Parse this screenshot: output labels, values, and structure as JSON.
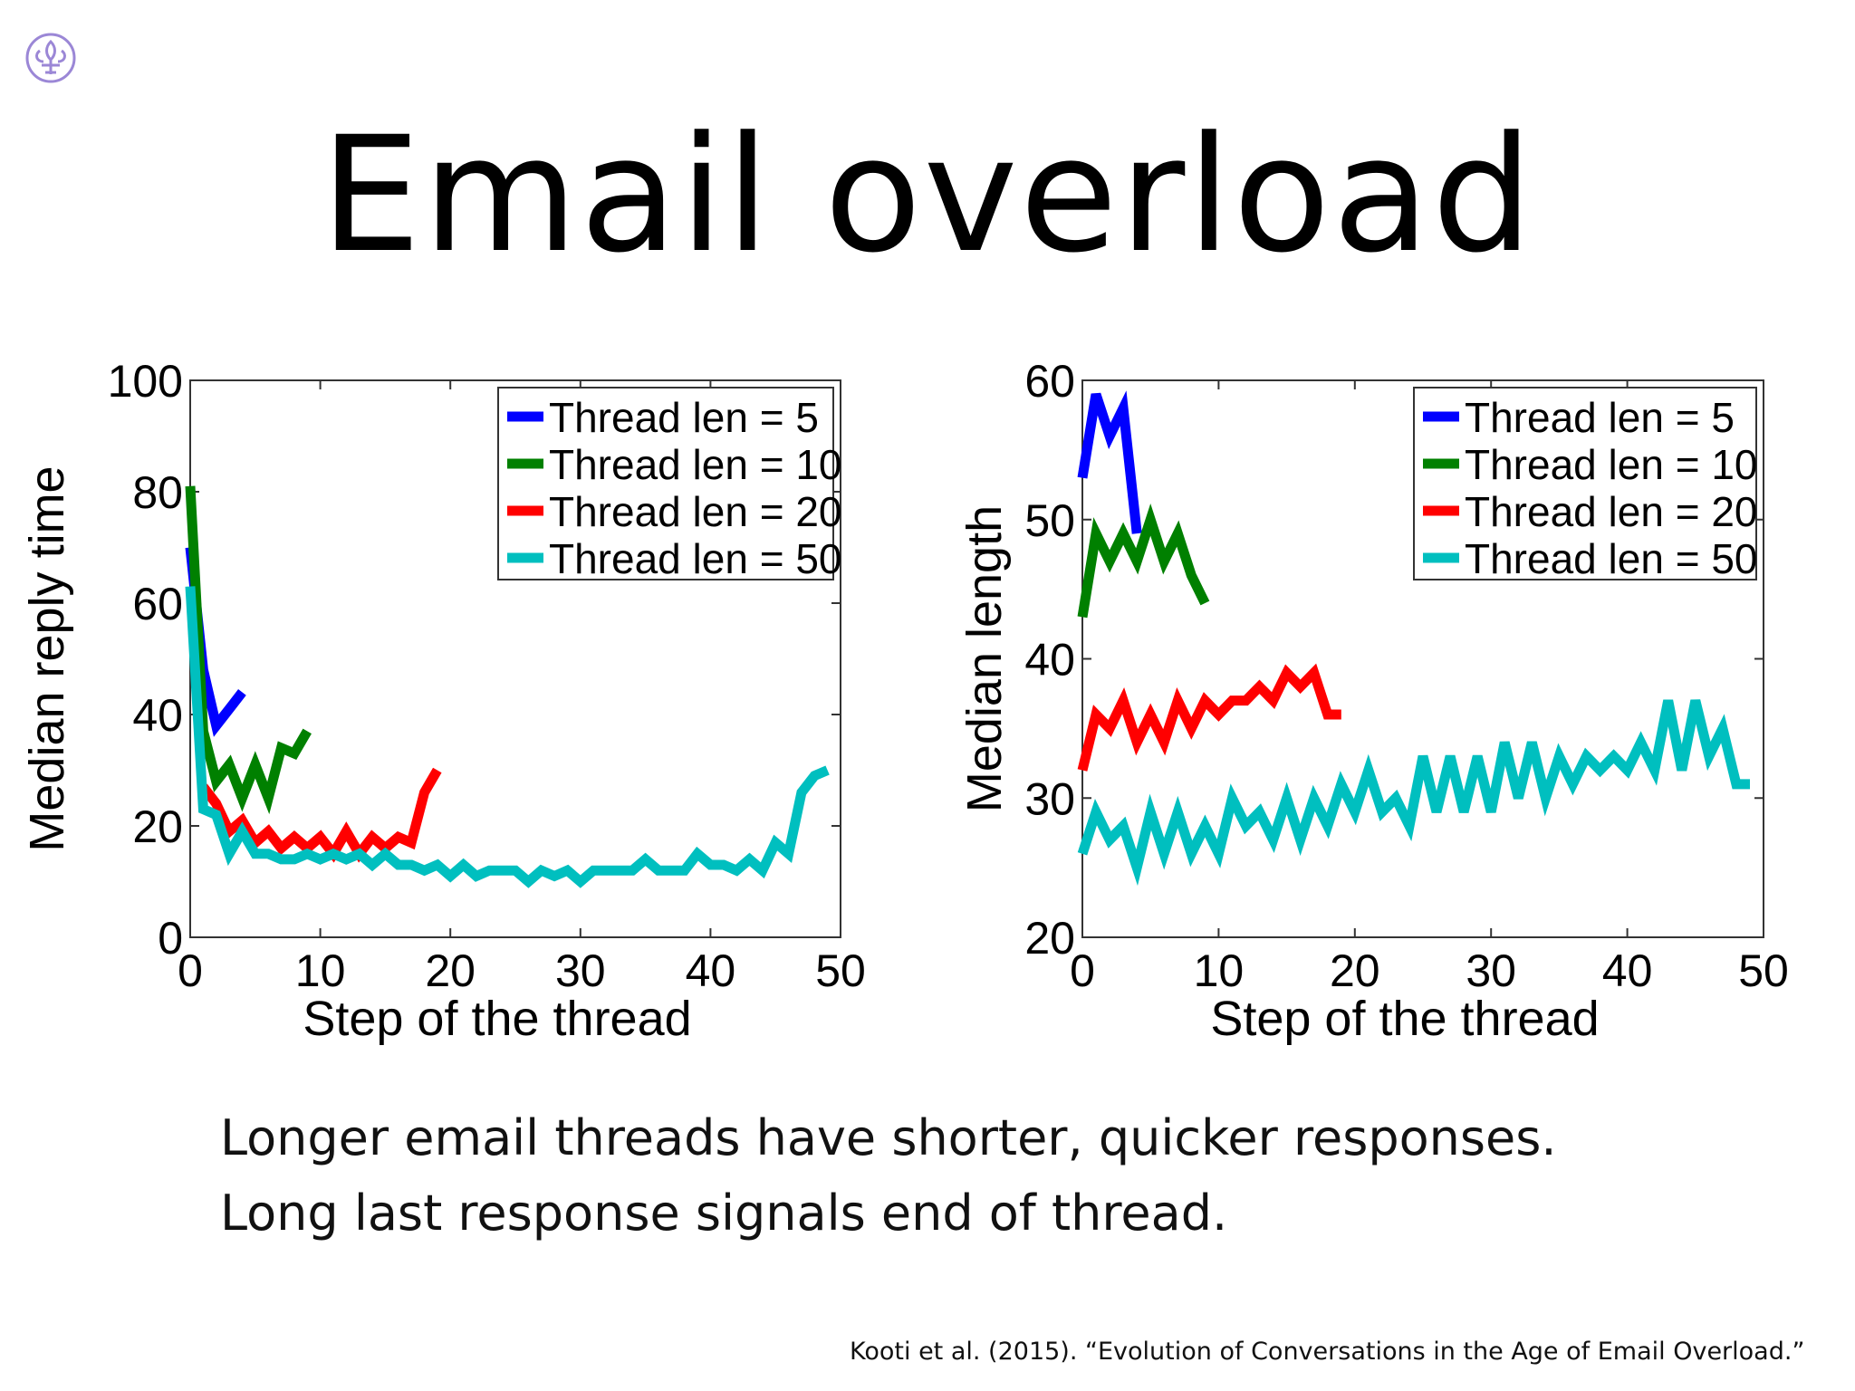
{
  "slide": {
    "title": "Email overload",
    "captions": [
      "Longer email threads have shorter, quicker responses.",
      "Long last response signals end of thread."
    ],
    "citation": "Kooti et al. (2015). “Evolution of Conversations in the Age of Email Overload.”",
    "logo_icon": "fleur-de-lis-icon",
    "logo_color": "#9b87d6"
  },
  "chart_data": [
    {
      "type": "line",
      "xlabel": "Step of the thread",
      "ylabel": "Median reply time",
      "xlim": [
        0,
        50
      ],
      "ylim": [
        0,
        100
      ],
      "xticks": [
        0,
        10,
        20,
        30,
        40,
        50
      ],
      "yticks": [
        0,
        20,
        40,
        60,
        80,
        100
      ],
      "grid": false,
      "legend": "top-right",
      "series": [
        {
          "name": "Thread len = 5",
          "color": "#0000ff",
          "x": [
            0,
            1,
            2,
            3,
            4
          ],
          "y": [
            70,
            48,
            38,
            41,
            44
          ]
        },
        {
          "name": "Thread len = 10",
          "color": "#008000",
          "x": [
            0,
            1,
            2,
            3,
            4,
            5,
            6,
            7,
            8,
            9
          ],
          "y": [
            81,
            37,
            28,
            31,
            25,
            31,
            25,
            34,
            33,
            37
          ]
        },
        {
          "name": "Thread len = 20",
          "color": "#ff0000",
          "x": [
            1,
            2,
            3,
            4,
            5,
            6,
            7,
            8,
            9,
            10,
            11,
            12,
            13,
            14,
            15,
            16,
            17,
            18,
            19
          ],
          "y": [
            27,
            24,
            19,
            21,
            17,
            19,
            16,
            18,
            16,
            18,
            15,
            19,
            15,
            18,
            16,
            18,
            17,
            26,
            30
          ]
        },
        {
          "name": "Thread len = 50",
          "color": "#00bfbf",
          "x": [
            0,
            1,
            2,
            3,
            4,
            5,
            6,
            7,
            8,
            9,
            10,
            11,
            12,
            13,
            14,
            15,
            16,
            17,
            18,
            19,
            20,
            21,
            22,
            23,
            24,
            25,
            26,
            27,
            28,
            29,
            30,
            31,
            32,
            33,
            34,
            35,
            36,
            37,
            38,
            39,
            40,
            41,
            42,
            43,
            44,
            45,
            46,
            47,
            48,
            49
          ],
          "y": [
            63,
            23,
            22,
            15,
            19,
            15,
            15,
            14,
            14,
            15,
            14,
            15,
            14,
            15,
            13,
            15,
            13,
            13,
            12,
            13,
            11,
            13,
            11,
            12,
            12,
            12,
            10,
            12,
            11,
            12,
            10,
            12,
            12,
            12,
            12,
            14,
            12,
            12,
            12,
            15,
            13,
            13,
            12,
            14,
            12,
            17,
            15,
            26,
            29,
            30
          ]
        }
      ]
    },
    {
      "type": "line",
      "xlabel": "Step of the thread",
      "ylabel": "Median length",
      "xlim": [
        0,
        50
      ],
      "ylim": [
        20,
        60
      ],
      "xticks": [
        0,
        10,
        20,
        30,
        40,
        50
      ],
      "yticks": [
        20,
        30,
        40,
        50,
        60
      ],
      "grid": false,
      "legend": "top-right",
      "series": [
        {
          "name": "Thread len = 5",
          "color": "#0000ff",
          "x": [
            0,
            1,
            2,
            3,
            4
          ],
          "y": [
            53,
            59,
            56,
            58,
            49
          ]
        },
        {
          "name": "Thread len = 10",
          "color": "#008000",
          "x": [
            0,
            1,
            2,
            3,
            4,
            5,
            6,
            7,
            8,
            9
          ],
          "y": [
            43,
            49,
            47,
            49,
            47,
            50,
            47,
            49,
            46,
            44
          ]
        },
        {
          "name": "Thread len = 20",
          "color": "#ff0000",
          "x": [
            0,
            1,
            2,
            3,
            4,
            5,
            6,
            7,
            8,
            9,
            10,
            11,
            12,
            13,
            14,
            15,
            16,
            17,
            18,
            19
          ],
          "y": [
            32,
            36,
            35,
            37,
            34,
            36,
            34,
            37,
            35,
            37,
            36,
            37,
            37,
            38,
            37,
            39,
            38,
            39,
            36,
            36
          ]
        },
        {
          "name": "Thread len = 50",
          "color": "#00bfbf",
          "x": [
            0,
            1,
            2,
            3,
            4,
            5,
            6,
            7,
            8,
            9,
            10,
            11,
            12,
            13,
            14,
            15,
            16,
            17,
            18,
            19,
            20,
            21,
            22,
            23,
            24,
            25,
            26,
            27,
            28,
            29,
            30,
            31,
            32,
            33,
            34,
            35,
            36,
            37,
            38,
            39,
            40,
            41,
            42,
            43,
            44,
            45,
            46,
            47,
            48,
            49
          ],
          "y": [
            26,
            29,
            27,
            28,
            25,
            29,
            26,
            29,
            26,
            28,
            26,
            30,
            28,
            29,
            27,
            30,
            27,
            30,
            28,
            31,
            29,
            32,
            29,
            30,
            28,
            33,
            29,
            33,
            29,
            33,
            29,
            34,
            30,
            34,
            30,
            33,
            31,
            33,
            32,
            33,
            32,
            34,
            32,
            37,
            32,
            37,
            33,
            35,
            31,
            31
          ]
        }
      ]
    }
  ]
}
